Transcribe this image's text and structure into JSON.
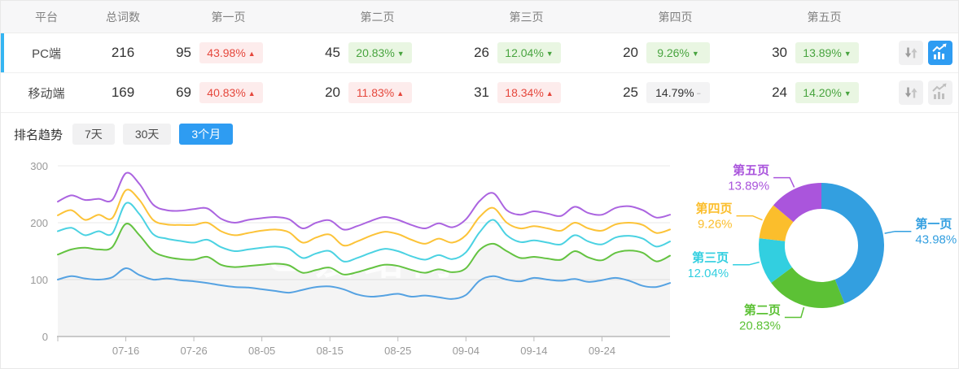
{
  "table": {
    "headers": [
      "平台",
      "总词数",
      "第一页",
      "第二页",
      "第三页",
      "第四页",
      "第五页"
    ],
    "rows": [
      {
        "platform": "PC端",
        "total": "216",
        "selected": true,
        "chart_active": true,
        "pages": [
          {
            "count": "95",
            "pct": "43.98%",
            "trend": "up"
          },
          {
            "count": "45",
            "pct": "20.83%",
            "trend": "down"
          },
          {
            "count": "26",
            "pct": "12.04%",
            "trend": "down"
          },
          {
            "count": "20",
            "pct": "9.26%",
            "trend": "down"
          },
          {
            "count": "30",
            "pct": "13.89%",
            "trend": "down"
          }
        ]
      },
      {
        "platform": "移动端",
        "total": "169",
        "selected": false,
        "chart_active": false,
        "pages": [
          {
            "count": "69",
            "pct": "40.83%",
            "trend": "up"
          },
          {
            "count": "20",
            "pct": "11.83%",
            "trend": "up"
          },
          {
            "count": "31",
            "pct": "18.34%",
            "trend": "up"
          },
          {
            "count": "25",
            "pct": "14.79%",
            "trend": "flat"
          },
          {
            "count": "24",
            "pct": "14.20%",
            "trend": "down"
          }
        ]
      }
    ]
  },
  "trend": {
    "label": "排名趋势",
    "tabs": [
      {
        "label": "7天",
        "active": false
      },
      {
        "label": "30天",
        "active": false
      },
      {
        "label": "3个月",
        "active": true
      }
    ]
  },
  "watermark": "爱站网",
  "colors": {
    "accent": "#2e9cf2",
    "row_marker": "#35b5f2",
    "up_red": "#e5473c",
    "down_green": "#48a43f"
  },
  "chart_data": [
    {
      "type": "line",
      "title": "排名趋势（3个月）",
      "x_tick_labels": [
        "07-16",
        "07-26",
        "08-05",
        "08-15",
        "08-25",
        "09-04",
        "09-14",
        "09-24"
      ],
      "x_tick_days": [
        10,
        20,
        30,
        40,
        50,
        60,
        70,
        80
      ],
      "x_total_days": 90,
      "point_step_days": 2,
      "ylim": [
        0,
        300
      ],
      "y_ticks": [
        0,
        100,
        200,
        300
      ],
      "grid": true,
      "area_series_index": 1,
      "area_fill": "rgba(0,0,0,0.045)",
      "series": [
        {
          "name": "第一页",
          "color": "#55a2e2",
          "values": [
            100,
            106,
            102,
            100,
            104,
            120,
            108,
            100,
            102,
            99,
            97,
            94,
            90,
            87,
            86,
            83,
            80,
            77,
            82,
            87,
            88,
            83,
            74,
            70,
            72,
            75,
            70,
            72,
            69,
            66,
            73,
            98,
            106,
            100,
            97,
            103,
            100,
            98,
            101,
            96,
            99,
            103,
            98,
            89,
            87,
            94
          ]
        },
        {
          "name": "第二页",
          "color": "#64c341",
          "values": [
            144,
            153,
            156,
            153,
            157,
            198,
            178,
            150,
            140,
            136,
            135,
            140,
            126,
            122,
            124,
            126,
            128,
            125,
            112,
            117,
            121,
            109,
            113,
            120,
            126,
            124,
            117,
            112,
            118,
            113,
            120,
            152,
            163,
            150,
            138,
            140,
            137,
            135,
            150,
            139,
            134,
            147,
            151,
            147,
            132,
            142
          ]
        },
        {
          "name": "第三页",
          "color": "#4bd2e2",
          "values": [
            185,
            191,
            178,
            185,
            181,
            234,
            215,
            180,
            172,
            168,
            165,
            170,
            157,
            150,
            153,
            156,
            158,
            154,
            138,
            146,
            150,
            132,
            138,
            147,
            154,
            150,
            141,
            135,
            143,
            136,
            148,
            183,
            205,
            178,
            166,
            169,
            165,
            162,
            178,
            167,
            162,
            174,
            177,
            172,
            158,
            167
          ]
        },
        {
          "name": "第四页",
          "color": "#fcc338",
          "values": [
            213,
            222,
            205,
            214,
            208,
            257,
            240,
            205,
            197,
            196,
            196,
            200,
            185,
            178,
            182,
            186,
            188,
            183,
            165,
            174,
            179,
            160,
            167,
            177,
            184,
            180,
            170,
            163,
            172,
            165,
            178,
            210,
            226,
            200,
            190,
            194,
            190,
            186,
            200,
            190,
            186,
            197,
            200,
            196,
            182,
            188
          ]
        },
        {
          "name": "第五页",
          "color": "#ab64e0",
          "values": [
            237,
            248,
            240,
            242,
            240,
            287,
            268,
            232,
            222,
            221,
            224,
            225,
            207,
            200,
            205,
            208,
            210,
            206,
            190,
            200,
            204,
            188,
            194,
            203,
            210,
            205,
            196,
            190,
            199,
            192,
            206,
            238,
            252,
            222,
            214,
            220,
            216,
            212,
            228,
            217,
            214,
            226,
            229,
            222,
            209,
            214
          ]
        }
      ]
    },
    {
      "type": "pie",
      "donut": true,
      "start": "top",
      "direction": "clockwise",
      "slices": [
        {
          "label": "第一页",
          "value": 43.98,
          "display": "43.98%",
          "color": "#339fe0"
        },
        {
          "label": "第二页",
          "value": 20.83,
          "display": "20.83%",
          "color": "#5cc135"
        },
        {
          "label": "第三页",
          "value": 12.04,
          "display": "12.04%",
          "color": "#32cfe0"
        },
        {
          "label": "第四页",
          "value": 9.26,
          "display": "9.26%",
          "color": "#fbbe2c"
        },
        {
          "label": "第五页",
          "value": 13.89,
          "display": "13.89%",
          "color": "#aa55dc"
        }
      ]
    }
  ]
}
